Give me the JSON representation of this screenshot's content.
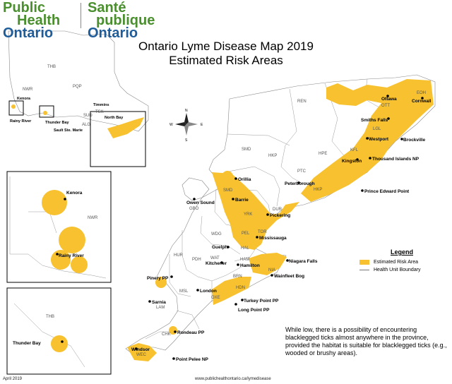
{
  "logo": {
    "en_line1": "Public",
    "en_line2": "Health",
    "en_line3": "Ontario",
    "fr_line1": "Santé",
    "fr_line2": "publique",
    "fr_line3": "Ontario",
    "green": "#4a8f2e",
    "blue": "#1e5c9a"
  },
  "title": {
    "line1": "Ontario Lyme Disease Map 2019",
    "line2": "Estimated Risk Areas"
  },
  "legend": {
    "title": "Legend",
    "risk": "Estimated Risk Area",
    "boundary": "Health Unit Boundary",
    "risk_color": "#f7c12f",
    "boundary_color": "#777777"
  },
  "compass": {
    "n": "N",
    "s": "S",
    "e": "E",
    "w": "W"
  },
  "note": "While low, there is a possibility of encountering blacklegged ticks almost anywhere in the province, provided the habitat is suitable for blacklegged ticks (e.g., wooded or brushy areas).",
  "footer": {
    "date": "April 2019",
    "url": "www.publichealthontario.ca/lymedisease"
  },
  "health_units": {
    "ren": "REN",
    "eoh": "EOH",
    "ott": "OTT",
    "lgl": "LGL",
    "kfl": "KFL",
    "hpe": "HPE",
    "hkp": "HKP",
    "ptc": "PTC",
    "smd": "SMD",
    "dur": "DUR",
    "yrk": "YRK",
    "tor": "TOR",
    "pel": "PEL",
    "hal": "HAL",
    "ham": "HAM",
    "nia": "NIA",
    "hdn": "HDN",
    "brn": "BRN",
    "wat": "WAT",
    "wdg": "WDG",
    "gbo": "GBO",
    "hur": "HUR",
    "pdh": "PDH",
    "msl": "MSL",
    "lam": "LAM",
    "oxe": "OXE",
    "chk": "CHK",
    "wec": "WEC",
    "nwr": "NWR",
    "thb": "THB",
    "pqp": "PQP",
    "sud": "SUD",
    "tsk": "TSK",
    "npb": "NPS",
    "alg": "ALG"
  },
  "places": {
    "ottawa": "Ottawa",
    "cornwall": "Cornwall",
    "smiths_falls": "Smiths Falls",
    "brockville": "Brockville",
    "westport": "Westport",
    "kingston": "Kingston",
    "thousand_islands": "Thousand Islands NP",
    "prince_edward": "Prince Edward Point",
    "peterborough": "Peterborough",
    "orillia": "Orillia",
    "barrie": "Barrie",
    "pickering": "Pickering",
    "mississauga": "Mississauga",
    "guelph": "Guelph",
    "hamilton": "Hamilton",
    "kitchener": "Kitchener",
    "niagara_falls": "Niagara Falls",
    "wainfleet": "Wainfleet Bog",
    "owen_sound": "Owen Sound",
    "pinery": "Pinery PP",
    "london": "London",
    "sarnia": "Sarnia",
    "turkey_point": "Turkey Point PP",
    "long_point": "Long Point PP",
    "rondeau": "Rondeau PP",
    "windsor": "Windsor",
    "point_pelee": "Point Pelee NP",
    "kenora_inset": "Kenora",
    "rainy_river_inset": "Rainy River",
    "thunder_bay_inset": "Thunder Bay",
    "kenora": "Kenora",
    "rainy_river": "Rainy River",
    "thunder_bay": "Thunder Bay",
    "sault": "Sault Ste. Marie",
    "timmins": "Timmins",
    "north_bay": "North Bay",
    "nwr_inset": "NWR",
    "thb_inset": "THB"
  }
}
